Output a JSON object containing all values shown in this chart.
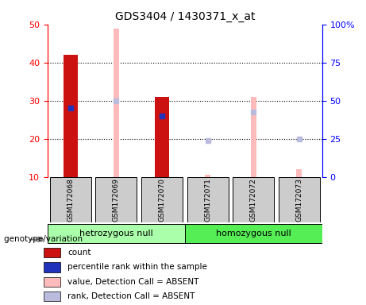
{
  "title": "GDS3404 / 1430371_x_at",
  "samples": [
    "GSM172068",
    "GSM172069",
    "GSM172070",
    "GSM172071",
    "GSM172072",
    "GSM172073"
  ],
  "red_bars": [
    42,
    0,
    31,
    0,
    0,
    0
  ],
  "blue_markers": [
    28,
    0,
    26,
    0,
    0,
    0
  ],
  "pink_bars": [
    0,
    49,
    0,
    10.5,
    31,
    12
  ],
  "lightblue_markers": [
    0,
    30,
    0,
    19.5,
    27,
    20
  ],
  "group1_label": "hetrozygous null",
  "group2_label": "homozygous null",
  "group1_indices": [
    0,
    1,
    2
  ],
  "group2_indices": [
    3,
    4,
    5
  ],
  "ylim_left": [
    10,
    50
  ],
  "yticks_left": [
    10,
    20,
    30,
    40,
    50
  ],
  "yticks_right": [
    0,
    25,
    50,
    75,
    100
  ],
  "yticklabels_right": [
    "0",
    "25",
    "50",
    "75",
    "100%"
  ],
  "red_bar_width": 0.32,
  "pink_bar_width": 0.12,
  "colors": {
    "red": "#cc1111",
    "blue": "#2233bb",
    "pink": "#ffbbbb",
    "lightblue": "#bbbbdd",
    "group1_bg": "#aaffaa",
    "group2_bg": "#55ee55",
    "label_bg": "#cccccc",
    "white": "#ffffff"
  },
  "legend": [
    {
      "color": "#cc1111",
      "label": "count"
    },
    {
      "color": "#2233bb",
      "label": "percentile rank within the sample"
    },
    {
      "color": "#ffbbbb",
      "label": "value, Detection Call = ABSENT"
    },
    {
      "color": "#bbbbdd",
      "label": "rank, Detection Call = ABSENT"
    }
  ],
  "genotype_label": "genotype/variation"
}
